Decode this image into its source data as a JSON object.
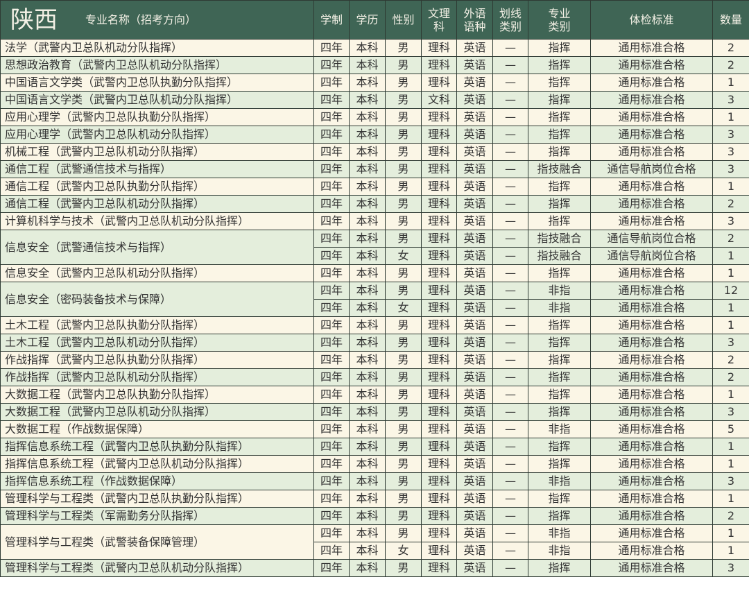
{
  "header": {
    "province": "陕西",
    "columns": [
      "专业名称（招考方向）",
      "学制",
      "学历",
      "性别",
      "文理\n科",
      "外语\n语种",
      "划线\n类别",
      "专业\n类别",
      "体检标准",
      "数量"
    ]
  },
  "groups": [
    {
      "name": "法学（武警内卫总队机动分队指挥）",
      "rows": [
        [
          "四年",
          "本科",
          "男",
          "理科",
          "英语",
          "—",
          "指挥",
          "通用标准合格",
          "2"
        ]
      ]
    },
    {
      "name": "思想政治教育（武警内卫总队机动分队指挥）",
      "rows": [
        [
          "四年",
          "本科",
          "男",
          "理科",
          "英语",
          "—",
          "指挥",
          "通用标准合格",
          "2"
        ]
      ]
    },
    {
      "name": "中国语言文学类（武警内卫总队执勤分队指挥）",
      "rows": [
        [
          "四年",
          "本科",
          "男",
          "理科",
          "英语",
          "—",
          "指挥",
          "通用标准合格",
          "1"
        ]
      ]
    },
    {
      "name": "中国语言文学类（武警内卫总队机动分队指挥）",
      "rows": [
        [
          "四年",
          "本科",
          "男",
          "文科",
          "英语",
          "—",
          "指挥",
          "通用标准合格",
          "3"
        ]
      ]
    },
    {
      "name": "应用心理学（武警内卫总队执勤分队指挥）",
      "rows": [
        [
          "四年",
          "本科",
          "男",
          "理科",
          "英语",
          "—",
          "指挥",
          "通用标准合格",
          "1"
        ]
      ]
    },
    {
      "name": "应用心理学（武警内卫总队机动分队指挥）",
      "rows": [
        [
          "四年",
          "本科",
          "男",
          "理科",
          "英语",
          "—",
          "指挥",
          "通用标准合格",
          "3"
        ]
      ]
    },
    {
      "name": "机械工程（武警内卫总队机动分队指挥）",
      "rows": [
        [
          "四年",
          "本科",
          "男",
          "理科",
          "英语",
          "—",
          "指挥",
          "通用标准合格",
          "3"
        ]
      ]
    },
    {
      "name": "通信工程（武警通信技术与指挥）",
      "rows": [
        [
          "四年",
          "本科",
          "男",
          "理科",
          "英语",
          "—",
          "指技融合",
          "通信导航岗位合格",
          "3"
        ]
      ]
    },
    {
      "name": "通信工程（武警内卫总队执勤分队指挥）",
      "rows": [
        [
          "四年",
          "本科",
          "男",
          "理科",
          "英语",
          "—",
          "指挥",
          "通用标准合格",
          "1"
        ]
      ]
    },
    {
      "name": "通信工程（武警内卫总队机动分队指挥）",
      "rows": [
        [
          "四年",
          "本科",
          "男",
          "理科",
          "英语",
          "—",
          "指挥",
          "通用标准合格",
          "2"
        ]
      ]
    },
    {
      "name": "计算机科学与技术（武警内卫总队机动分队指挥）",
      "rows": [
        [
          "四年",
          "本科",
          "男",
          "理科",
          "英语",
          "—",
          "指挥",
          "通用标准合格",
          "3"
        ]
      ]
    },
    {
      "name": "信息安全（武警通信技术与指挥）",
      "rows": [
        [
          "四年",
          "本科",
          "男",
          "理科",
          "英语",
          "—",
          "指技融合",
          "通信导航岗位合格",
          "2"
        ],
        [
          "四年",
          "本科",
          "女",
          "理科",
          "英语",
          "—",
          "指技融合",
          "通信导航岗位合格",
          "1"
        ]
      ]
    },
    {
      "name": "信息安全（武警内卫总队机动分队指挥）",
      "rows": [
        [
          "四年",
          "本科",
          "男",
          "理科",
          "英语",
          "—",
          "指挥",
          "通用标准合格",
          "1"
        ]
      ]
    },
    {
      "name": "信息安全（密码装备技术与保障）",
      "rows": [
        [
          "四年",
          "本科",
          "男",
          "理科",
          "英语",
          "—",
          "非指",
          "通用标准合格",
          "12"
        ],
        [
          "四年",
          "本科",
          "女",
          "理科",
          "英语",
          "—",
          "非指",
          "通用标准合格",
          "1"
        ]
      ]
    },
    {
      "name": "土木工程（武警内卫总队执勤分队指挥）",
      "rows": [
        [
          "四年",
          "本科",
          "男",
          "理科",
          "英语",
          "—",
          "指挥",
          "通用标准合格",
          "1"
        ]
      ]
    },
    {
      "name": "土木工程（武警内卫总队机动分队指挥）",
      "rows": [
        [
          "四年",
          "本科",
          "男",
          "理科",
          "英语",
          "—",
          "指挥",
          "通用标准合格",
          "3"
        ]
      ]
    },
    {
      "name": "作战指挥（武警内卫总队执勤分队指挥）",
      "rows": [
        [
          "四年",
          "本科",
          "男",
          "理科",
          "英语",
          "—",
          "指挥",
          "通用标准合格",
          "2"
        ]
      ]
    },
    {
      "name": "作战指挥（武警内卫总队机动分队指挥）",
      "rows": [
        [
          "四年",
          "本科",
          "男",
          "理科",
          "英语",
          "—",
          "指挥",
          "通用标准合格",
          "2"
        ]
      ]
    },
    {
      "name": "大数据工程（武警内卫总队执勤分队指挥）",
      "rows": [
        [
          "四年",
          "本科",
          "男",
          "理科",
          "英语",
          "—",
          "指挥",
          "通用标准合格",
          "1"
        ]
      ]
    },
    {
      "name": "大数据工程（武警内卫总队机动分队指挥）",
      "rows": [
        [
          "四年",
          "本科",
          "男",
          "理科",
          "英语",
          "—",
          "指挥",
          "通用标准合格",
          "3"
        ]
      ]
    },
    {
      "name": "大数据工程（作战数据保障）",
      "rows": [
        [
          "四年",
          "本科",
          "男",
          "理科",
          "英语",
          "—",
          "非指",
          "通用标准合格",
          "5"
        ]
      ]
    },
    {
      "name": "指挥信息系统工程（武警内卫总队执勤分队指挥）",
      "rows": [
        [
          "四年",
          "本科",
          "男",
          "理科",
          "英语",
          "—",
          "指挥",
          "通用标准合格",
          "1"
        ]
      ]
    },
    {
      "name": "指挥信息系统工程（武警内卫总队机动分队指挥）",
      "rows": [
        [
          "四年",
          "本科",
          "男",
          "理科",
          "英语",
          "—",
          "指挥",
          "通用标准合格",
          "1"
        ]
      ]
    },
    {
      "name": "指挥信息系统工程（作战数据保障）",
      "rows": [
        [
          "四年",
          "本科",
          "男",
          "理科",
          "英语",
          "—",
          "非指",
          "通用标准合格",
          "3"
        ]
      ]
    },
    {
      "name": "管理科学与工程类（武警内卫总队执勤分队指挥）",
      "rows": [
        [
          "四年",
          "本科",
          "男",
          "理科",
          "英语",
          "—",
          "指挥",
          "通用标准合格",
          "1"
        ]
      ]
    },
    {
      "name": "管理科学与工程类（军需勤务分队指挥）",
      "rows": [
        [
          "四年",
          "本科",
          "男",
          "理科",
          "英语",
          "—",
          "指挥",
          "通用标准合格",
          "2"
        ]
      ]
    },
    {
      "name": "管理科学与工程类（武警装备保障管理）",
      "rows": [
        [
          "四年",
          "本科",
          "男",
          "理科",
          "英语",
          "—",
          "非指",
          "通用标准合格",
          "1"
        ],
        [
          "四年",
          "本科",
          "女",
          "理科",
          "英语",
          "—",
          "非指",
          "通用标准合格",
          "1"
        ]
      ]
    },
    {
      "name": "管理科学与工程类（武警内卫总队机动分队指挥）",
      "rows": [
        [
          "四年",
          "本科",
          "男",
          "理科",
          "英语",
          "—",
          "指挥",
          "通用标准合格",
          "3"
        ]
      ]
    }
  ],
  "colors": {
    "header_bg": "#3f6555",
    "row_cream": "#fbf6e6",
    "row_green": "#e4eedc"
  }
}
